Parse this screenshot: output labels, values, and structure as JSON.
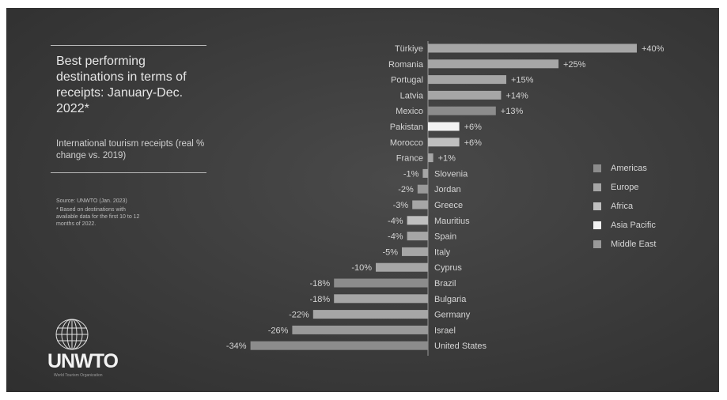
{
  "title": "Best performing destinations in terms of receipts: January-Dec. 2022*",
  "subtitle": "International tourism receipts (real % change vs. 2019)",
  "source": "Source: UNWTO (Jan. 2023)",
  "note": "* Based on destinations with available data for the first 10 to 12 months of 2022.",
  "logo": {
    "name": "UNWTO",
    "tagline": "World Tourism Organization"
  },
  "legend": [
    {
      "label": "Americas",
      "color": "#8c8c8c"
    },
    {
      "label": "Europe",
      "color": "#a6a6a6"
    },
    {
      "label": "Africa",
      "color": "#bfbfbf"
    },
    {
      "label": "Asia Pacific",
      "color": "#f2f2f2"
    },
    {
      "label": "Middle East",
      "color": "#999999"
    }
  ],
  "chart_data": {
    "type": "bar",
    "orientation": "horizontal",
    "title": "",
    "xlabel": "",
    "ylabel": "",
    "xlim": [
      -40,
      45
    ],
    "grid": false,
    "legend_position": "right",
    "categories": [
      "Türkiye",
      "Romania",
      "Portugal",
      "Latvia",
      "Mexico",
      "Pakistan",
      "Morocco",
      "France",
      "Slovenia",
      "Jordan",
      "Greece",
      "Mauritius",
      "Spain",
      "Italy",
      "Cyprus",
      "Brazil",
      "Bulgaria",
      "Germany",
      "Israel",
      "United States"
    ],
    "values": [
      40,
      25,
      15,
      14,
      13,
      6,
      6,
      1,
      -1,
      -2,
      -3,
      -4,
      -4,
      -5,
      -10,
      -18,
      -18,
      -22,
      -26,
      -34
    ],
    "value_labels": [
      "+40%",
      "+25%",
      "+15%",
      "+14%",
      "+13%",
      "+6%",
      "+6%",
      "+1%",
      "-1%",
      "-2%",
      "-3%",
      "-4%",
      "-4%",
      "-5%",
      "-10%",
      "-18%",
      "-18%",
      "-22%",
      "-26%",
      "-34%"
    ],
    "regions": [
      "Europe",
      "Europe",
      "Europe",
      "Europe",
      "Americas",
      "Asia Pacific",
      "Africa",
      "Europe",
      "Europe",
      "Middle East",
      "Europe",
      "Africa",
      "Europe",
      "Europe",
      "Europe",
      "Americas",
      "Europe",
      "Europe",
      "Middle East",
      "Americas"
    ]
  }
}
